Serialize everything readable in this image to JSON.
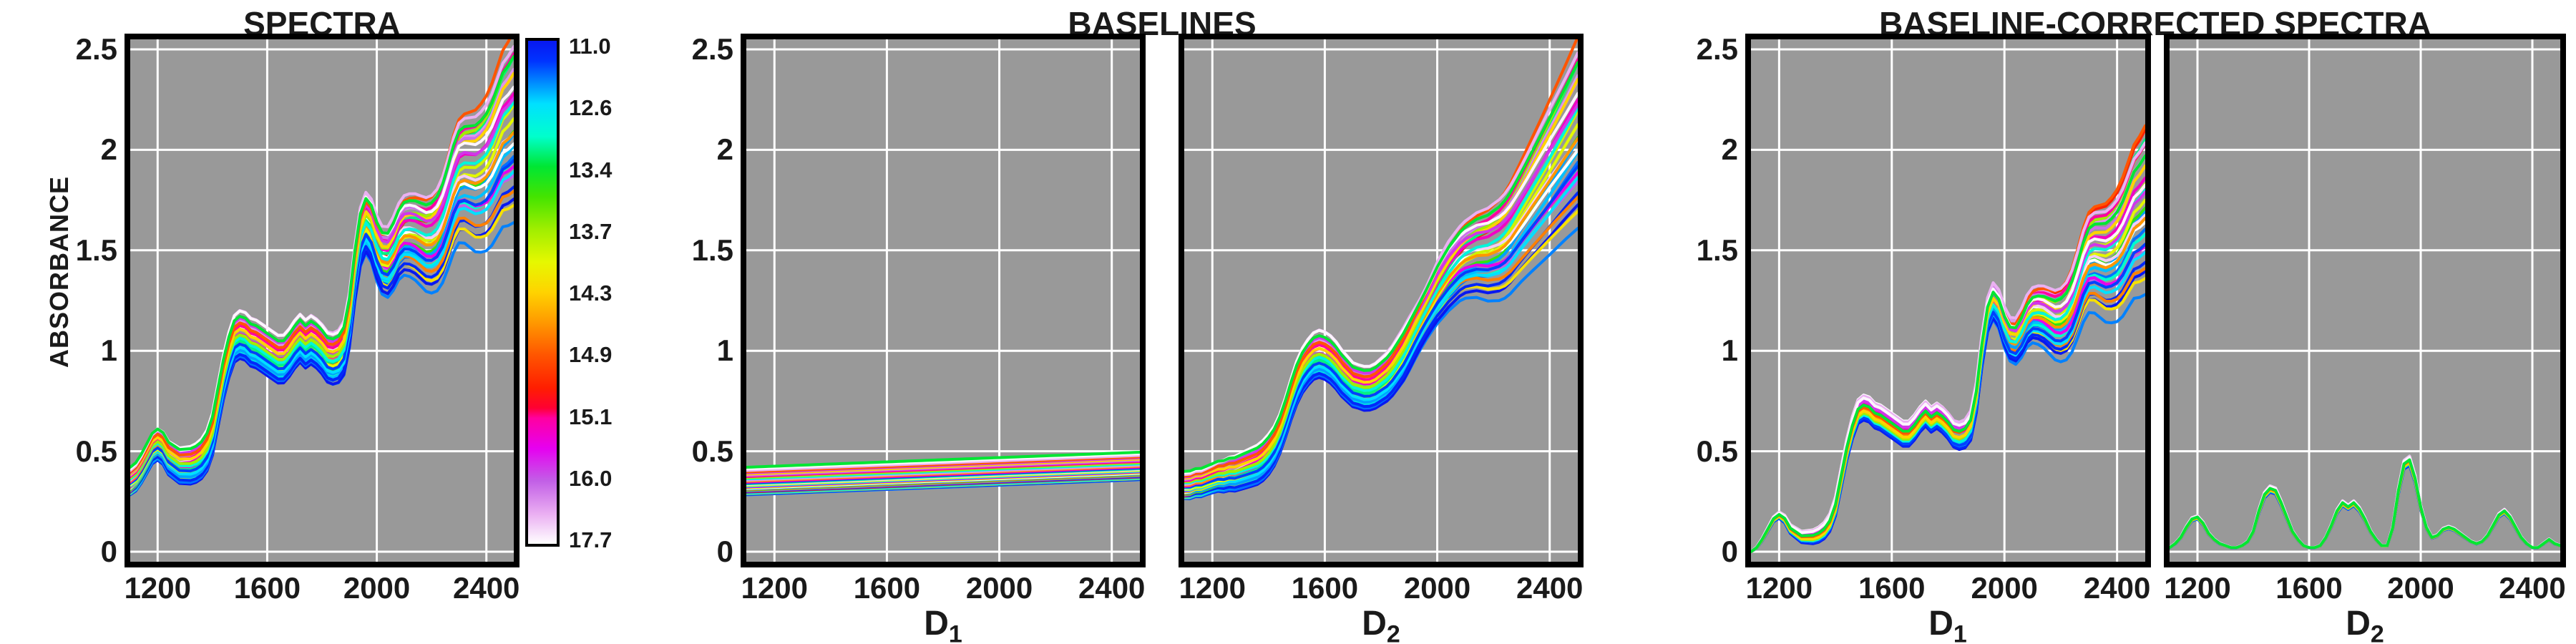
{
  "figure": {
    "titles": {
      "spectra": "SPECTRA",
      "baselines": "BASELINES",
      "corrected": "BASELINE-CORRECTED SPECTRA"
    },
    "ylabel": "ABSORBANCE",
    "colors": {
      "plot_bg": "#999999",
      "grid": "#ffffff",
      "frame": "#000000",
      "text": "#1a1a1a",
      "page_bg": "#ffffff"
    }
  },
  "axes": {
    "xlim": [
      1100,
      2500
    ],
    "ylim": [
      0,
      2.5
    ],
    "xticks": [
      1200,
      1600,
      2000,
      2400
    ],
    "xtick_labels": [
      "1200",
      "1600",
      "2000",
      "2400"
    ],
    "yticks": [
      0,
      0.5,
      1,
      1.5,
      2,
      2.5
    ],
    "ytick_labels": [
      "0",
      "0.5",
      "1",
      "1.5",
      "2",
      "2.5"
    ],
    "grid": true
  },
  "colorbar": {
    "tick_labels": [
      "11.0",
      "12.6",
      "13.4",
      "13.7",
      "14.3",
      "14.9",
      "15.1",
      "16.0",
      "17.7"
    ],
    "tick_values": [
      11.0,
      12.6,
      13.4,
      13.7,
      14.3,
      14.9,
      15.1,
      16.0,
      17.7
    ],
    "gradient_stops": [
      [
        0.0,
        "#0818f0"
      ],
      [
        0.04,
        "#0033ff"
      ],
      [
        0.09,
        "#0099ff"
      ],
      [
        0.125,
        "#00e0ff"
      ],
      [
        0.19,
        "#00ffcc"
      ],
      [
        0.25,
        "#00e633"
      ],
      [
        0.31,
        "#44e400"
      ],
      [
        0.375,
        "#a0ee00"
      ],
      [
        0.44,
        "#e6f800"
      ],
      [
        0.5,
        "#ffd300"
      ],
      [
        0.56,
        "#ff9900"
      ],
      [
        0.625,
        "#ff5500"
      ],
      [
        0.69,
        "#ff1e00"
      ],
      [
        0.73,
        "#ff0033"
      ],
      [
        0.75,
        "#ff00a0"
      ],
      [
        0.81,
        "#e600f0"
      ],
      [
        0.875,
        "#c25fe6"
      ],
      [
        0.94,
        "#eaaef2"
      ],
      [
        1.0,
        "#ffffff"
      ]
    ]
  },
  "chart_data": {
    "type": "line",
    "title": "SPECTRA / BASELINES / BASELINE-CORRECTED SPECTRA",
    "xlabel": "",
    "ylabel": "ABSORBANCE",
    "xlim": [
      1100,
      2500
    ],
    "ylim": [
      0,
      2.5
    ],
    "panels": [
      {
        "key": "spectra",
        "mode": "spectra",
        "title": "SPECTRA",
        "xlabel_main": "",
        "xlabel_sub": "",
        "show_yticks": true
      },
      {
        "key": "baselines-d1",
        "mode": "base1",
        "title": "BASELINES",
        "xlabel_main": "D",
        "xlabel_sub": "1",
        "show_yticks": true
      },
      {
        "key": "baselines-d2",
        "mode": "base2",
        "title": "BASELINES",
        "xlabel_main": "D",
        "xlabel_sub": "2",
        "show_yticks": false
      },
      {
        "key": "corrected-d1",
        "mode": "corr1",
        "title": "BASELINE-CORRECTED SPECTRA",
        "xlabel_main": "D",
        "xlabel_sub": "1",
        "show_yticks": true
      },
      {
        "key": "corrected-d2",
        "mode": "corr2",
        "title": "BASELINE-CORRECTED SPECTRA",
        "xlabel_main": "D",
        "xlabel_sub": "2",
        "show_yticks": false
      }
    ],
    "x": [
      1100,
      1120,
      1140,
      1160,
      1180,
      1200,
      1220,
      1240,
      1260,
      1280,
      1300,
      1320,
      1340,
      1360,
      1380,
      1400,
      1420,
      1440,
      1460,
      1480,
      1500,
      1520,
      1540,
      1560,
      1580,
      1600,
      1620,
      1640,
      1660,
      1680,
      1700,
      1720,
      1740,
      1760,
      1780,
      1800,
      1820,
      1840,
      1860,
      1880,
      1900,
      1920,
      1940,
      1960,
      1980,
      2000,
      2020,
      2040,
      2060,
      2080,
      2100,
      2120,
      2140,
      2160,
      2180,
      2200,
      2220,
      2240,
      2260,
      2280,
      2300,
      2320,
      2340,
      2360,
      2380,
      2400,
      2420,
      2440,
      2460,
      2480,
      2500
    ],
    "baseline2_shape": [
      -0.02,
      -0.02,
      -0.01,
      -0.01,
      0.0,
      0.01,
      0.02,
      0.02,
      0.03,
      0.03,
      0.04,
      0.05,
      0.06,
      0.07,
      0.09,
      0.12,
      0.16,
      0.22,
      0.3,
      0.39,
      0.47,
      0.53,
      0.57,
      0.6,
      0.61,
      0.6,
      0.58,
      0.55,
      0.51,
      0.48,
      0.45,
      0.44,
      0.43,
      0.43,
      0.44,
      0.46,
      0.48,
      0.51,
      0.55,
      0.59,
      0.64,
      0.69,
      0.74,
      0.79,
      0.84,
      0.89,
      0.93,
      0.97,
      1.0,
      1.03,
      1.05,
      1.06,
      1.07,
      1.07,
      1.07,
      1.08,
      1.09,
      1.11,
      1.14,
      1.18,
      1.22,
      1.26,
      1.3,
      1.34,
      1.38,
      1.42,
      1.46,
      1.5,
      1.54,
      1.58,
      1.62
    ],
    "residual_shape": [
      0.02,
      0.04,
      0.07,
      0.12,
      0.16,
      0.17,
      0.14,
      0.09,
      0.06,
      0.04,
      0.03,
      0.02,
      0.02,
      0.03,
      0.05,
      0.1,
      0.2,
      0.28,
      0.31,
      0.3,
      0.24,
      0.17,
      0.1,
      0.06,
      0.03,
      0.02,
      0.02,
      0.03,
      0.07,
      0.13,
      0.2,
      0.24,
      0.22,
      0.24,
      0.21,
      0.16,
      0.1,
      0.06,
      0.03,
      0.03,
      0.12,
      0.3,
      0.43,
      0.45,
      0.36,
      0.22,
      0.12,
      0.07,
      0.08,
      0.11,
      0.12,
      0.11,
      0.09,
      0.07,
      0.05,
      0.04,
      0.05,
      0.08,
      0.13,
      0.18,
      0.2,
      0.17,
      0.12,
      0.07,
      0.04,
      0.02,
      0.02,
      0.04,
      0.06,
      0.04,
      0.03
    ],
    "baseline1_rise": 0.075,
    "series": [
      {
        "v": 13.4,
        "b0": 0.42,
        "o": 0.02,
        "t": 0.3
      },
      {
        "v": 17.6,
        "b0": 0.412,
        "o": 0.055,
        "t": 0.12
      },
      {
        "v": 16.9,
        "b0": 0.404,
        "o": 0.065,
        "t": 0.32
      },
      {
        "v": 14.9,
        "b0": 0.397,
        "o": 0.01,
        "t": 0.46
      },
      {
        "v": 15.8,
        "b0": 0.392,
        "o": 0.04,
        "t": 0.1
      },
      {
        "v": 14.3,
        "b0": 0.386,
        "o": -0.01,
        "t": 0.28
      },
      {
        "v": 16.2,
        "b0": 0.38,
        "o": 0.05,
        "t": 0.22
      },
      {
        "v": 15.1,
        "b0": 0.374,
        "o": 0.02,
        "t": 0.36
      },
      {
        "v": 13.7,
        "b0": 0.368,
        "o": -0.02,
        "t": 0.4
      },
      {
        "v": 12.9,
        "b0": 0.362,
        "o": -0.03,
        "t": 0.18
      },
      {
        "v": 16.6,
        "b0": 0.356,
        "o": 0.06,
        "t": 0.26
      },
      {
        "v": 14.6,
        "b0": 0.351,
        "o": -0.01,
        "t": 0.02
      },
      {
        "v": 15.3,
        "b0": 0.346,
        "o": 0.03,
        "t": 0.18
      },
      {
        "v": 11.6,
        "b0": 0.342,
        "o": -0.04,
        "t": -0.08
      },
      {
        "v": 13.2,
        "b0": 0.338,
        "o": -0.02,
        "t": 0.42
      },
      {
        "v": 17.2,
        "b0": 0.334,
        "o": 0.065,
        "t": -0.04
      },
      {
        "v": 14.0,
        "b0": 0.33,
        "o": -0.02,
        "t": 0.12
      },
      {
        "v": 12.6,
        "b0": 0.326,
        "o": -0.04,
        "t": -0.12
      },
      {
        "v": 15.5,
        "b0": 0.322,
        "o": 0.03,
        "t": -0.16
      },
      {
        "v": 13.9,
        "b0": 0.318,
        "o": -0.02,
        "t": 0.2
      },
      {
        "v": 17.7,
        "b0": 0.315,
        "o": 0.07,
        "t": -0.08
      },
      {
        "v": 12.2,
        "b0": 0.312,
        "o": -0.04,
        "t": 0.08
      },
      {
        "v": 14.7,
        "b0": 0.309,
        "o": 0.0,
        "t": -0.24
      },
      {
        "v": 13.5,
        "b0": 0.306,
        "o": -0.02,
        "t": 0.08
      },
      {
        "v": 16.0,
        "b0": 0.303,
        "o": 0.045,
        "t": -0.2
      },
      {
        "v": 11.3,
        "b0": 0.3,
        "o": -0.05,
        "t": -0.16
      },
      {
        "v": 15.0,
        "b0": 0.297,
        "o": 0.01,
        "t": 0.44
      },
      {
        "v": 12.4,
        "b0": 0.294,
        "o": -0.04,
        "t": 0.04
      },
      {
        "v": 13.0,
        "b0": 0.291,
        "o": -0.03,
        "t": -0.04
      },
      {
        "v": 14.2,
        "b0": 0.289,
        "o": -0.01,
        "t": -0.28
      },
      {
        "v": 11.9,
        "b0": 0.287,
        "o": -0.045,
        "t": 0.0
      },
      {
        "v": 11.0,
        "b0": 0.285,
        "o": -0.055,
        "t": -0.2
      },
      {
        "v": 12.0,
        "b0": 0.283,
        "o": -0.05,
        "t": -0.32
      }
    ]
  }
}
